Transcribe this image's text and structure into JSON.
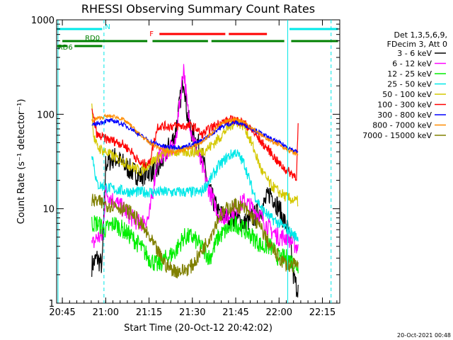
{
  "chart_data": {
    "type": "line",
    "title": "RHESSI Observing Summary Count Rates",
    "xlabel": "Start Time (20-Oct-12 20:42:02)",
    "ylabel": "Count Rate (s⁻¹ detector⁻¹)",
    "yscale": "log",
    "ylim": [
      1,
      1000
    ],
    "xlim": [
      -0.033,
      1.6
    ],
    "x_unit": "hours since 20:44",
    "x_ticks": [
      {
        "x": 0.0,
        "label": "20:45"
      },
      {
        "x": 0.25,
        "label": "21:00"
      },
      {
        "x": 0.5,
        "label": "21:15"
      },
      {
        "x": 0.75,
        "label": "21:30"
      },
      {
        "x": 1.0,
        "label": "21:45"
      },
      {
        "x": 1.25,
        "label": "22:00"
      },
      {
        "x": 1.5,
        "label": "22:15"
      }
    ],
    "y_ticks": [
      {
        "y": 1,
        "label": "1"
      },
      {
        "y": 10,
        "label": "10"
      },
      {
        "y": 100,
        "label": "100"
      },
      {
        "y": 1000,
        "label": "1000"
      }
    ],
    "legend": {
      "placement": "right",
      "header": [
        "Det 1,3,5,6,9,",
        "FDecim 3, Att 0"
      ],
      "entries": [
        {
          "name": "3 - 6 keV",
          "color": "#000000"
        },
        {
          "name": "6 - 12 keV",
          "color": "#ff00ff"
        },
        {
          "name": "12 - 25 keV",
          "color": "#00ee00"
        },
        {
          "name": "25 - 50 keV",
          "color": "#00e8e8"
        },
        {
          "name": "50 - 100 keV",
          "color": "#d4c800"
        },
        {
          "name": "100 - 300 keV",
          "color": "#ff0000"
        },
        {
          "name": "300 - 800 keV",
          "color": "#0000ff"
        },
        {
          "name": "800 - 7000 keV",
          "color": "#ff8c00"
        },
        {
          "name": "7000 - 15000 keV",
          "color": "#808000"
        }
      ]
    },
    "flag_bars": [
      {
        "label": "N",
        "color": "#00e8e8",
        "segments": [
          [
            -0.03,
            0.23
          ],
          [
            1.31,
            1.59
          ]
        ]
      },
      {
        "label": "F",
        "color": "#ff0000",
        "segments": [
          [
            0.56,
            0.94
          ],
          [
            0.96,
            1.18
          ]
        ]
      },
      {
        "label": "RD0",
        "color": "#008000",
        "segments": [
          [
            0.0,
            0.49
          ],
          [
            0.52,
            0.84
          ],
          [
            0.86,
            1.28
          ],
          [
            1.32,
            1.59
          ]
        ]
      },
      {
        "label": "RD6",
        "color": "#008000",
        "segments": [
          [
            -0.03,
            0.03
          ],
          [
            0.07,
            0.23
          ]
        ]
      }
    ],
    "markers": [
      {
        "x": -0.025,
        "color": "#00e8e8",
        "style": "solid"
      },
      {
        "x": 0.24,
        "color": "#00e8e8",
        "style": "dashed"
      },
      {
        "x": 1.3,
        "color": "#00e8e8",
        "style": "solid"
      },
      {
        "x": 1.55,
        "color": "#00e8e8",
        "style": "dashed"
      }
    ],
    "series_interval": [
      0.17,
      1.36
    ],
    "series": [
      {
        "name": "3 - 6 keV",
        "color": "#000000",
        "noise": 0.12,
        "x": [
          0.17,
          0.2,
          0.23,
          0.25,
          0.3,
          0.35,
          0.4,
          0.45,
          0.5,
          0.55,
          0.6,
          0.65,
          0.7,
          0.72,
          0.75,
          0.78,
          0.8,
          0.85,
          0.9,
          0.95,
          1.0,
          1.05,
          1.1,
          1.15,
          1.2,
          1.25,
          1.3,
          1.32,
          1.33,
          1.35,
          1.36
        ],
        "y": [
          2.5,
          3,
          2.5,
          30,
          35,
          30,
          25,
          22,
          25,
          25,
          40,
          60,
          250,
          100,
          60,
          50,
          40,
          15,
          9,
          8,
          8,
          7,
          8,
          10,
          15,
          10,
          6,
          4,
          2,
          1.5,
          1.5
        ]
      },
      {
        "name": "6 - 12 keV",
        "color": "#ff00ff",
        "noise": 0.1,
        "x": [
          0.17,
          0.2,
          0.23,
          0.25,
          0.3,
          0.35,
          0.4,
          0.45,
          0.5,
          0.55,
          0.6,
          0.65,
          0.68,
          0.7,
          0.72,
          0.75,
          0.8,
          0.85,
          0.9,
          0.95,
          1.0,
          1.05,
          1.1,
          1.15,
          1.2,
          1.25,
          1.3,
          1.35,
          1.36
        ],
        "y": [
          4,
          5,
          5,
          15,
          12,
          10,
          8,
          7,
          8,
          35,
          40,
          45,
          150,
          320,
          120,
          60,
          30,
          15,
          9,
          8,
          10,
          12,
          10,
          8,
          6,
          5,
          5,
          4,
          4
        ]
      },
      {
        "name": "12 - 25 keV",
        "color": "#00ee00",
        "noise": 0.1,
        "x": [
          0.17,
          0.2,
          0.25,
          0.3,
          0.35,
          0.4,
          0.45,
          0.5,
          0.55,
          0.6,
          0.65,
          0.7,
          0.75,
          0.8,
          0.85,
          0.9,
          0.95,
          1.0,
          1.05,
          1.1,
          1.15,
          1.2,
          1.25,
          1.3,
          1.35,
          1.36
        ],
        "y": [
          7,
          7,
          6,
          7,
          6,
          5,
          4,
          3,
          2.5,
          3,
          3.5,
          5,
          5,
          4,
          3,
          5,
          6,
          7,
          6,
          5,
          4,
          4,
          3,
          3,
          2.5,
          2.5
        ]
      },
      {
        "name": "25 - 50 keV",
        "color": "#00e8e8",
        "noise": 0.06,
        "x": [
          0.17,
          0.2,
          0.25,
          0.3,
          0.4,
          0.5,
          0.6,
          0.7,
          0.8,
          0.85,
          0.9,
          0.95,
          1.0,
          1.05,
          1.1,
          1.15,
          1.2,
          1.25,
          1.3,
          1.35,
          1.36
        ],
        "y": [
          40,
          18,
          17,
          16,
          15,
          15,
          15,
          15,
          15,
          20,
          28,
          35,
          40,
          30,
          15,
          10,
          8,
          7,
          6,
          5,
          5
        ]
      },
      {
        "name": "50 - 100 keV",
        "color": "#d4c800",
        "noise": 0.06,
        "x": [
          0.17,
          0.18,
          0.2,
          0.25,
          0.3,
          0.35,
          0.4,
          0.45,
          0.5,
          0.55,
          0.6,
          0.65,
          0.7,
          0.75,
          0.8,
          0.85,
          0.9,
          0.95,
          1.0,
          1.05,
          1.1,
          1.15,
          1.2,
          1.25,
          1.3,
          1.35,
          1.36
        ],
        "y": [
          130,
          60,
          45,
          40,
          35,
          32,
          28,
          25,
          30,
          35,
          40,
          40,
          40,
          40,
          40,
          45,
          55,
          70,
          85,
          75,
          45,
          25,
          18,
          15,
          13,
          12,
          12
        ]
      },
      {
        "name": "100 - 300 keV",
        "color": "#ff0000",
        "noise": 0.05,
        "x": [
          0.17,
          0.2,
          0.25,
          0.3,
          0.35,
          0.4,
          0.45,
          0.5,
          0.55,
          0.6,
          0.65,
          0.7,
          0.75,
          0.78,
          0.8,
          0.85,
          0.9,
          0.95,
          1.0,
          1.05,
          1.1,
          1.15,
          1.2,
          1.25,
          1.3,
          1.35,
          1.36
        ],
        "y": [
          110,
          60,
          55,
          52,
          48,
          40,
          30,
          30,
          75,
          75,
          75,
          75,
          75,
          70,
          60,
          70,
          80,
          85,
          88,
          80,
          65,
          50,
          40,
          30,
          25,
          22,
          75
        ]
      },
      {
        "name": "300 - 800 keV",
        "color": "#0000ff",
        "noise": 0.025,
        "x": [
          0.17,
          0.2,
          0.25,
          0.3,
          0.35,
          0.4,
          0.45,
          0.5,
          0.55,
          0.6,
          0.65,
          0.7,
          0.75,
          0.8,
          0.85,
          0.9,
          0.95,
          1.0,
          1.05,
          1.1,
          1.15,
          1.2,
          1.25,
          1.3,
          1.35,
          1.36
        ],
        "y": [
          75,
          80,
          85,
          85,
          78,
          70,
          60,
          52,
          48,
          45,
          45,
          45,
          48,
          52,
          60,
          70,
          78,
          82,
          78,
          70,
          62,
          55,
          50,
          45,
          40,
          40
        ]
      },
      {
        "name": "800 - 7000 keV",
        "color": "#ff8c00",
        "noise": 0.02,
        "x": [
          0.17,
          0.2,
          0.25,
          0.3,
          0.35,
          0.4,
          0.45,
          0.5,
          0.55,
          0.6,
          0.65,
          0.7,
          0.75,
          0.8,
          0.85,
          0.9,
          0.95,
          1.0,
          1.05,
          1.1,
          1.15,
          1.2,
          1.25,
          1.3,
          1.35,
          1.36
        ],
        "y": [
          85,
          90,
          95,
          95,
          88,
          75,
          60,
          50,
          45,
          40,
          40,
          42,
          45,
          50,
          60,
          75,
          85,
          90,
          82,
          70,
          60,
          52,
          48,
          42,
          38,
          38
        ]
      },
      {
        "name": "7000 - 15000 keV",
        "color": "#808000",
        "noise": 0.08,
        "x": [
          0.17,
          0.2,
          0.25,
          0.3,
          0.35,
          0.4,
          0.45,
          0.5,
          0.55,
          0.6,
          0.65,
          0.7,
          0.75,
          0.8,
          0.85,
          0.9,
          0.95,
          1.0,
          1.05,
          1.1,
          1.15,
          1.2,
          1.25,
          1.3,
          1.35,
          1.36
        ],
        "y": [
          12,
          12,
          11,
          11,
          10,
          9,
          7,
          5,
          3.5,
          2.5,
          2.2,
          2.2,
          2.5,
          3.5,
          5,
          8,
          10,
          11,
          10,
          8,
          6,
          4,
          3,
          2.5,
          2.5,
          2.5
        ]
      }
    ]
  },
  "footer": {
    "timestamp": "20-Oct-2021 00:48"
  }
}
